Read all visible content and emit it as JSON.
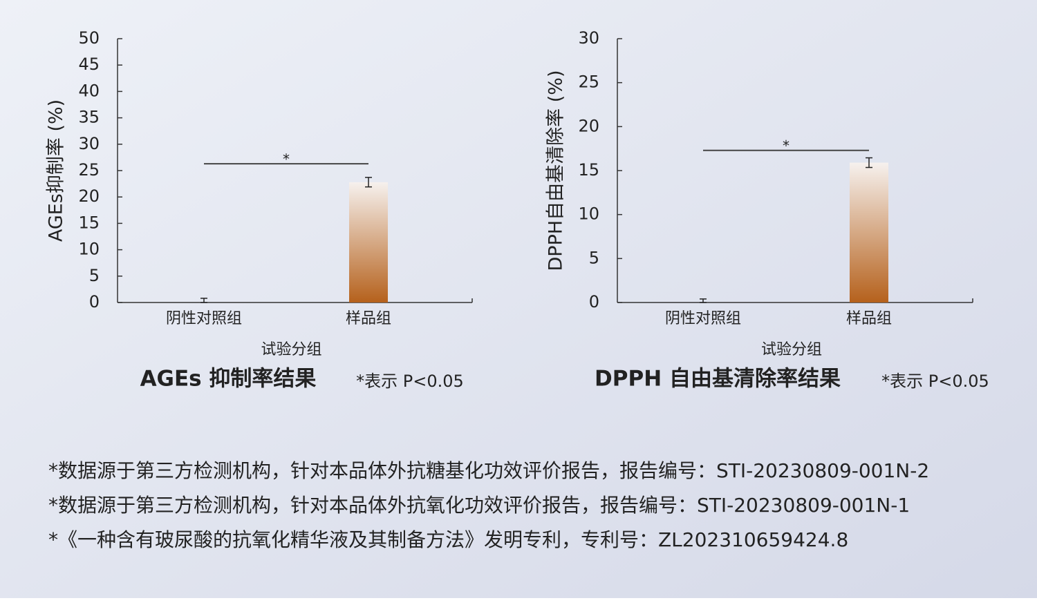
{
  "chart_data": [
    {
      "type": "bar",
      "title": "AGEs 抑制率结果",
      "note": "*表示 P<0.05",
      "y_label": "AGEs抑制率 (%)",
      "x_label": "试验分组",
      "categories": [
        "阴性对照组",
        "样品组"
      ],
      "values": [
        0,
        22.8
      ],
      "errors": [
        0.8,
        0.9
      ],
      "color": "#b5611c",
      "ylim": [
        0,
        50
      ],
      "yticks": [
        0,
        5,
        10,
        15,
        20,
        25,
        30,
        35,
        40,
        45,
        50
      ],
      "significance": {
        "label": "*",
        "value": 26.3
      }
    },
    {
      "type": "bar",
      "title": "DPPH 自由基清除率结果",
      "note": "*表示 P<0.05",
      "y_label": "DPPH自由基清除率 (%)",
      "x_label": "试验分组",
      "categories": [
        "阴性对照组",
        "样品组"
      ],
      "values": [
        0,
        15.9
      ],
      "errors": [
        0.4,
        0.55
      ],
      "color": "#b5611c",
      "ylim": [
        0,
        30
      ],
      "yticks": [
        0,
        5,
        10,
        15,
        20,
        25,
        30
      ],
      "significance": {
        "label": "*",
        "value": 17.3
      }
    }
  ],
  "notes": [
    "*数据源于第三方检测机构，针对本品体外抗糖基化功效评价报告，报告编号：STI-20230809-001N-2",
    "*数据源于第三方检测机构，针对本品体外抗氧化功效评价报告，报告编号：STI-20230809-001N-1",
    "*《一种含有玻尿酸的抗氧化精华液及其制备方法》发明专利，专利号：ZL202310659424.8"
  ]
}
